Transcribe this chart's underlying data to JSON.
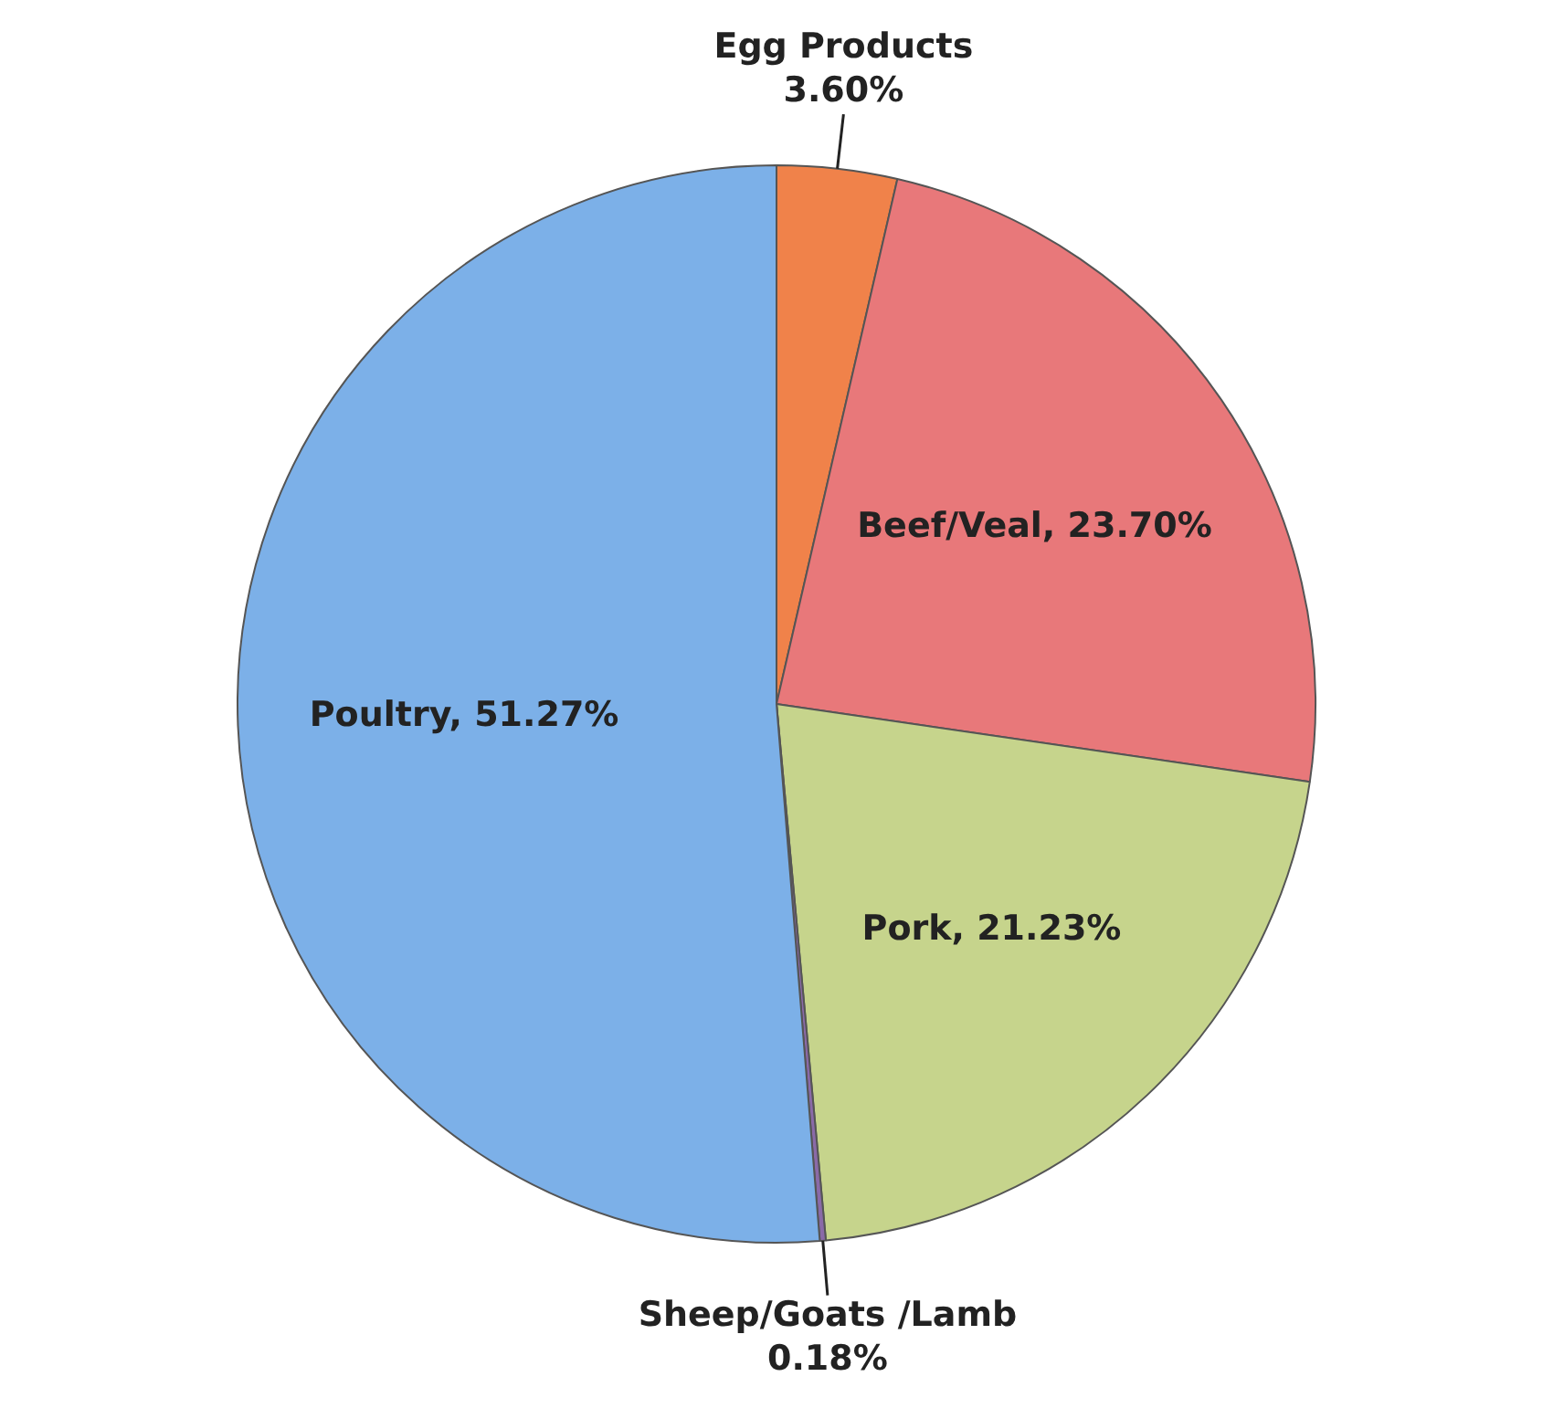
{
  "chart_data": {
    "type": "pie",
    "categories": [
      "Egg Products",
      "Beef/Veal",
      "Pork",
      "Sheep/Goats /Lamb",
      "Poultry"
    ],
    "values": [
      3.6,
      23.7,
      21.23,
      0.18,
      51.27
    ],
    "value_labels": [
      "3.60%",
      "23.70%",
      "21.23%",
      "0.18%",
      "51.27%"
    ],
    "colors": [
      "#f0824a",
      "#e8787a",
      "#c6d48c",
      "#8a6aa8",
      "#7cb0e8"
    ],
    "legend": false
  }
}
